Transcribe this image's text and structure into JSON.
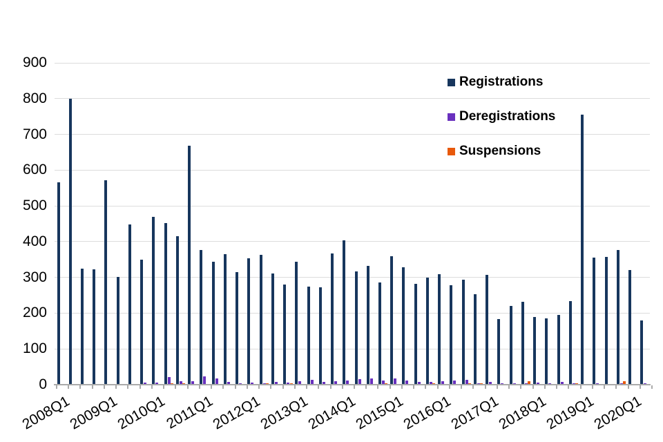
{
  "chart_data": {
    "type": "bar",
    "title": "",
    "xlabel": "",
    "ylabel": "",
    "categories": [
      "2008Q1",
      "2008Q2",
      "2008Q3",
      "2008Q4",
      "2009Q1",
      "2009Q2",
      "2009Q3",
      "2009Q4",
      "2010Q1",
      "2010Q2",
      "2010Q3",
      "2010Q4",
      "2011Q1",
      "2011Q2",
      "2011Q3",
      "2011Q4",
      "2012Q1",
      "2012Q2",
      "2012Q3",
      "2012Q4",
      "2013Q1",
      "2013Q2",
      "2013Q3",
      "2013Q4",
      "2014Q1",
      "2014Q2",
      "2014Q3",
      "2014Q4",
      "2015Q1",
      "2015Q2",
      "2015Q3",
      "2015Q4",
      "2016Q1",
      "2016Q2",
      "2016Q3",
      "2016Q4",
      "2017Q1",
      "2017Q2",
      "2017Q3",
      "2017Q4",
      "2018Q1",
      "2018Q2",
      "2018Q3",
      "2018Q4",
      "2019Q1",
      "2019Q2",
      "2019Q3",
      "2019Q4",
      "2020Q1",
      "2020Q2"
    ],
    "series": [
      {
        "name": "Registrations",
        "color": "#17365D",
        "values": [
          565,
          800,
          324,
          323,
          571,
          302,
          449,
          350,
          470,
          451,
          415,
          668,
          377,
          343,
          365,
          314,
          353,
          364,
          311,
          280,
          344,
          274,
          273,
          367,
          403,
          317,
          332,
          286,
          359,
          328,
          282,
          299,
          309,
          278,
          294,
          253,
          307,
          184,
          221,
          232,
          190,
          186,
          196,
          234,
          755,
          356,
          357,
          376,
          321,
          180
        ]
      },
      {
        "name": "Deregistrations",
        "color": "#6930BE",
        "values": [
          2,
          2,
          2,
          2,
          2,
          2,
          2,
          5,
          5,
          22,
          9,
          9,
          24,
          17,
          8,
          4,
          5,
          4,
          8,
          6,
          10,
          13,
          7,
          9,
          12,
          16,
          17,
          12,
          17,
          11,
          7,
          8,
          10,
          12,
          13,
          4,
          8,
          4,
          3,
          4,
          6,
          3,
          7,
          4,
          2,
          3,
          2,
          3,
          2,
          4
        ]
      },
      {
        "name": "Suspensions",
        "color": "#E8590B",
        "values": [
          1,
          1,
          1,
          1,
          1,
          1,
          1,
          1,
          1,
          3,
          3,
          1,
          1,
          1,
          1,
          1,
          1,
          3,
          2,
          3,
          1,
          2,
          1,
          1,
          2,
          1,
          1,
          3,
          1,
          2,
          2,
          4,
          1,
          1,
          3,
          3,
          1,
          1,
          1,
          10,
          2,
          1,
          1,
          3,
          1,
          1,
          1,
          9,
          2,
          1
        ]
      }
    ],
    "ylim": [
      0,
      900
    ],
    "ytick_interval": 100,
    "ytick_labels": [
      "0",
      "100",
      "200",
      "300",
      "400",
      "500",
      "600",
      "700",
      "800",
      "900"
    ],
    "xtick_labels": [
      "2008Q1",
      "2009Q1",
      "2010Q1",
      "2011Q1",
      "2012Q1",
      "2013Q1",
      "2014Q1",
      "2015Q1",
      "2016Q1",
      "2017Q1",
      "2018Q1",
      "2019Q1",
      "2020Q1"
    ],
    "xtick_every": 4,
    "grid": "horizontal",
    "legend_position": "top-right-inside"
  },
  "colors": {
    "background": "#FFFFFF",
    "gridline": "#DCDCDC",
    "axis": "#AAAAAA",
    "text": "#000000"
  }
}
